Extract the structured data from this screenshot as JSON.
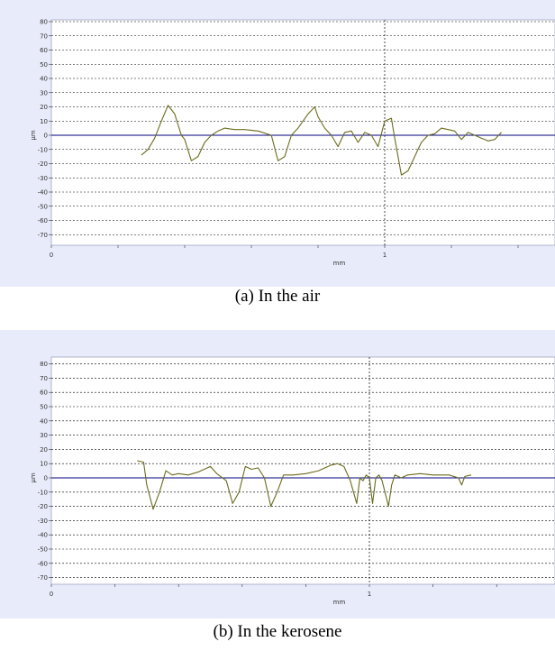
{
  "chart_data": [
    {
      "type": "line",
      "caption": "(a) In the air",
      "xlabel": "mm",
      "ylabel": "µm",
      "xlim": [
        0,
        1.5
      ],
      "ylim": [
        -80,
        80
      ],
      "xticks": [
        0,
        1
      ],
      "yticks": [
        80,
        70,
        60,
        50,
        40,
        30,
        20,
        10,
        0,
        -10,
        -20,
        -30,
        -40,
        -50,
        -60,
        -70
      ],
      "grid": true,
      "reference_line": {
        "axis": "x",
        "value": 1
      },
      "colors": {
        "line": "#6b6b1e",
        "zero": "#000080",
        "grid": "#000000",
        "background": "#e8ebfa"
      },
      "series": [
        {
          "x": [
            0.27,
            0.29,
            0.31,
            0.33,
            0.35,
            0.37,
            0.39,
            0.4,
            0.42,
            0.44,
            0.46,
            0.48,
            0.5,
            0.52,
            0.55,
            0.58,
            0.62,
            0.66,
            0.68,
            0.7,
            0.72,
            0.74,
            0.77,
            0.79,
            0.8,
            0.82,
            0.84,
            0.86,
            0.88,
            0.9,
            0.92,
            0.94,
            0.96,
            0.98,
            1.0,
            1.02,
            1.03,
            1.05,
            1.07,
            1.09,
            1.11,
            1.13,
            1.15,
            1.17,
            1.19,
            1.21,
            1.23,
            1.25,
            1.27,
            1.29,
            1.31,
            1.33,
            1.35
          ],
          "y": [
            -14,
            -10,
            -2,
            10,
            21,
            15,
            0,
            -3,
            -18,
            -15,
            -5,
            0,
            3,
            5,
            4,
            4,
            3,
            0,
            -18,
            -15,
            0,
            5,
            15,
            20,
            13,
            5,
            0,
            -8,
            2,
            3,
            -5,
            2,
            0,
            -8,
            10,
            12,
            -2,
            -28,
            -25,
            -15,
            -5,
            0,
            1,
            5,
            4,
            3,
            -3,
            2,
            0,
            -2,
            -4,
            -3,
            2
          ]
        }
      ]
    },
    {
      "type": "line",
      "caption": "(b) In the kerosene",
      "xlabel": "mm",
      "ylabel": "µm",
      "xlim": [
        0,
        1.5
      ],
      "ylim": [
        -80,
        80
      ],
      "xticks": [
        0,
        1
      ],
      "yticks": [
        80,
        70,
        60,
        50,
        40,
        30,
        20,
        10,
        0,
        -10,
        -20,
        -30,
        -40,
        -50,
        -60,
        -70
      ],
      "grid": true,
      "reference_line": {
        "axis": "x",
        "value": 1
      },
      "colors": {
        "line": "#6b6b1e",
        "zero": "#000080",
        "grid": "#000000",
        "background": "#e8ebfa"
      },
      "series": [
        {
          "x": [
            0.27,
            0.29,
            0.3,
            0.32,
            0.34,
            0.36,
            0.38,
            0.4,
            0.43,
            0.46,
            0.5,
            0.52,
            0.55,
            0.57,
            0.59,
            0.61,
            0.63,
            0.65,
            0.67,
            0.69,
            0.71,
            0.73,
            0.76,
            0.8,
            0.84,
            0.88,
            0.9,
            0.92,
            0.94,
            0.96,
            0.97,
            0.98,
            0.99,
            1.0,
            1.01,
            1.02,
            1.03,
            1.04,
            1.06,
            1.07,
            1.08,
            1.1,
            1.12,
            1.16,
            1.2,
            1.25,
            1.28,
            1.29,
            1.3,
            1.32
          ],
          "y": [
            12,
            11,
            -5,
            -22,
            -10,
            5,
            2,
            3,
            2,
            4,
            8,
            3,
            -2,
            -18,
            -10,
            8,
            6,
            7,
            0,
            -20,
            -10,
            2,
            2,
            3,
            5,
            9,
            10,
            8,
            -2,
            -18,
            0,
            -2,
            2,
            0,
            -18,
            0,
            2,
            -2,
            -20,
            -5,
            2,
            0,
            2,
            3,
            2,
            2,
            0,
            -5,
            1,
            2
          ]
        }
      ]
    }
  ]
}
